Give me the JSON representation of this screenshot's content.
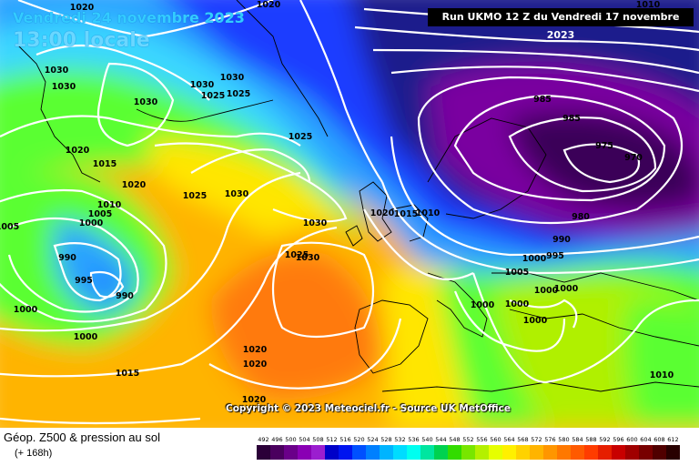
{
  "header": {
    "date": "Vendredi 24 novembre 2023",
    "time": "13:00 locale",
    "run": "Run UKMO 12 Z du Vendredi 17 novembre 2023"
  },
  "copyright": "Copyright © 2023 Meteociel.fr - Source UK MetOffice",
  "legend": {
    "title": "Géop. Z500 & pression au sol",
    "subtitle": "(+ 168h)",
    "scale_labels": [
      "492",
      "496",
      "500",
      "504",
      "508",
      "512",
      "516",
      "520",
      "524",
      "528",
      "532",
      "536",
      "540",
      "544",
      "548",
      "552",
      "556",
      "560",
      "564",
      "568",
      "572",
      "576",
      "580",
      "584",
      "588",
      "592",
      "596",
      "600",
      "604",
      "608",
      "612"
    ],
    "scale_colors": [
      "#2b0038",
      "#4a005e",
      "#6a0089",
      "#8a00b4",
      "#9b1ecf",
      "#0000c8",
      "#0014f0",
      "#0050ff",
      "#0080ff",
      "#00b4ff",
      "#00dcff",
      "#00fff0",
      "#00e6a0",
      "#00d250",
      "#32dc00",
      "#78e600",
      "#b4f000",
      "#e6ff00",
      "#fff000",
      "#ffd200",
      "#ffb400",
      "#ff9600",
      "#ff7800",
      "#ff5a00",
      "#ff3c00",
      "#e61e00",
      "#c80000",
      "#a00000",
      "#780000",
      "#500000",
      "#280000"
    ]
  },
  "map": {
    "colors": {
      "deep_low": "#3a0058",
      "low_purple": "#7a00a0",
      "navy": "#1a1a8c",
      "blue": "#1f3cff",
      "light_blue": "#29a3ff",
      "cyan": "#3ad7ff",
      "green": "#5aff32",
      "lime": "#b0f000",
      "yellow": "#ffe600",
      "orange": "#ffb400",
      "deep_orange": "#ff7a10",
      "isobar": "#ffffff"
    },
    "pressure_labels": [
      {
        "text": "1020",
        "lon": "greenland-n"
      },
      {
        "text": "1020",
        "lon": "arctic-n"
      },
      {
        "text": "1030",
        "lon": "baffin"
      },
      {
        "text": "1030",
        "lon": "baffin-2"
      },
      {
        "text": "1030",
        "lon": "greenland"
      },
      {
        "text": "1030",
        "lon": "greenland-e"
      },
      {
        "text": "1025",
        "lon": "greenland-e2"
      },
      {
        "text": "1025",
        "lon": "greenland-e3"
      },
      {
        "text": "1030",
        "lon": "greenland-w"
      },
      {
        "text": "1025",
        "lon": "iceland"
      },
      {
        "text": "1020",
        "lon": "labrador"
      },
      {
        "text": "1015",
        "lon": "labrador-s"
      },
      {
        "text": "1020",
        "lon": "atlantic-nw"
      },
      {
        "text": "1025",
        "lon": "atlantic-n"
      },
      {
        "text": "1030",
        "lon": "atlantic-n2"
      },
      {
        "text": "1030",
        "lon": "atlantic-c"
      },
      {
        "text": "1010",
        "lon": "newfoundland"
      },
      {
        "text": "1005",
        "lon": "newfoundland-2"
      },
      {
        "text": "1000",
        "lon": "newfoundland-3"
      },
      {
        "text": "1005",
        "lon": "w-edge"
      },
      {
        "text": "990",
        "lon": "low-w"
      },
      {
        "text": "995",
        "lon": "low-w2"
      },
      {
        "text": "990",
        "lon": "low-centre"
      },
      {
        "text": "1000",
        "lon": "w-edge-s"
      },
      {
        "text": "1000",
        "lon": "atlantic-sw"
      },
      {
        "text": "1015",
        "lon": "atlantic-s"
      },
      {
        "text": "1020",
        "lon": "azores"
      },
      {
        "text": "1020",
        "lon": "azores-2"
      },
      {
        "text": "1020",
        "lon": "azores-3"
      },
      {
        "text": "1025",
        "lon": "biscay"
      },
      {
        "text": "1030",
        "lon": "biscay-2"
      },
      {
        "text": "1020",
        "lon": "uk"
      },
      {
        "text": "1015",
        "lon": "north-sea"
      },
      {
        "text": "1010",
        "lon": "denmark"
      },
      {
        "text": "985",
        "lon": "scandinavia"
      },
      {
        "text": "985",
        "lon": "scandinavia-2"
      },
      {
        "text": "975",
        "lon": "finland"
      },
      {
        "text": "970",
        "lon": "russia"
      },
      {
        "text": "980",
        "lon": "baltic"
      },
      {
        "text": "990",
        "lon": "poland"
      },
      {
        "text": "995",
        "lon": "poland-2"
      },
      {
        "text": "1000",
        "lon": "germany"
      },
      {
        "text": "1005",
        "lon": "alps"
      },
      {
        "text": "1000",
        "lon": "hungary"
      },
      {
        "text": "1000",
        "lon": "italy"
      },
      {
        "text": "1000",
        "lon": "balkans"
      },
      {
        "text": "1000",
        "lon": "balkans-2"
      },
      {
        "text": "1000",
        "lon": "black-sea"
      },
      {
        "text": "1010",
        "lon": "anatolia"
      },
      {
        "text": "1010",
        "lon": "russia-e"
      }
    ]
  }
}
